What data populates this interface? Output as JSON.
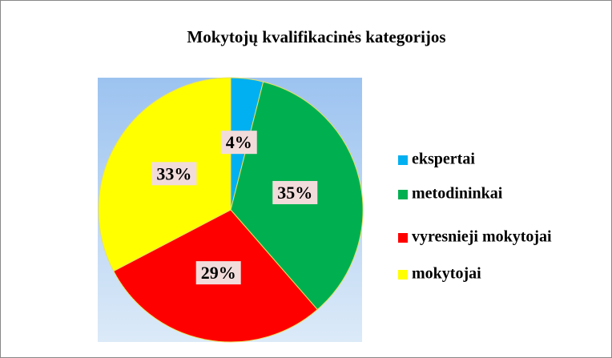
{
  "chart_data": {
    "type": "pie",
    "title": "Mokytojų kvalifikacinės kategorijos",
    "categories": [
      "ekspertai",
      "metodininkai",
      "vyresnieji mokytojai",
      "mokytojai"
    ],
    "values": [
      4,
      35,
      29,
      33
    ],
    "value_labels": [
      "4%",
      "35%",
      "29%",
      "33%"
    ],
    "colors": [
      "#00b0f0",
      "#00b050",
      "#ff0000",
      "#ffff00"
    ],
    "legend": "right"
  }
}
